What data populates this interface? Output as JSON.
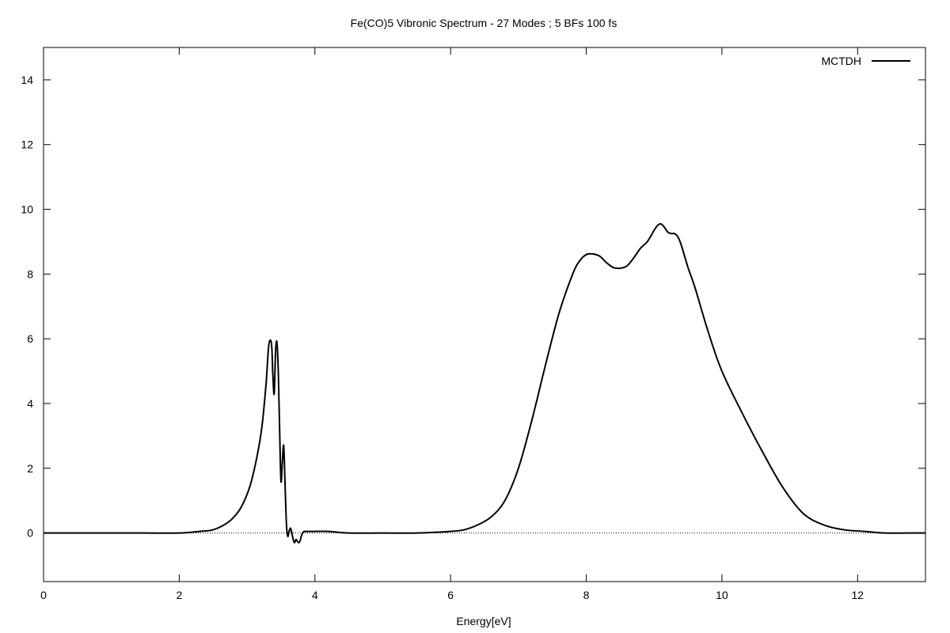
{
  "chart_data": {
    "type": "line",
    "title": "Fe(CO)5 Vibronic Spectrum - 27 Modes ; 5 BFs 100 fs",
    "xlabel": "Energy[eV]",
    "ylabel": "",
    "xlim": [
      0,
      13
    ],
    "ylim": [
      -1.5,
      15
    ],
    "xticks": [
      0,
      2,
      4,
      6,
      8,
      10,
      12
    ],
    "yticks": [
      0,
      2,
      4,
      6,
      8,
      10,
      12,
      14
    ],
    "xtick_labels": [
      "0",
      "2",
      "4",
      "6",
      "8",
      "10",
      "12"
    ],
    "ytick_labels": [
      "0",
      "2",
      "4",
      "6",
      "8",
      "10",
      "12",
      "14"
    ],
    "grid": false,
    "zero_line": true,
    "legend_position": "top-right",
    "series": [
      {
        "name": "MCTDH",
        "color": "#000000",
        "x": [
          0.0,
          0.5,
          1.0,
          1.5,
          2.0,
          2.3,
          2.5,
          2.7,
          2.85,
          2.95,
          3.05,
          3.15,
          3.22,
          3.28,
          3.32,
          3.36,
          3.38,
          3.4,
          3.42,
          3.44,
          3.46,
          3.48,
          3.5,
          3.52,
          3.54,
          3.56,
          3.58,
          3.6,
          3.62,
          3.64,
          3.66,
          3.68,
          3.7,
          3.72,
          3.74,
          3.76,
          3.78,
          3.8,
          3.82,
          3.84,
          3.86,
          3.88,
          3.9,
          3.95,
          4.0,
          4.2,
          4.5,
          5.0,
          5.5,
          6.0,
          6.2,
          6.4,
          6.6,
          6.8,
          7.0,
          7.2,
          7.4,
          7.6,
          7.8,
          7.9,
          8.0,
          8.1,
          8.2,
          8.3,
          8.4,
          8.5,
          8.6,
          8.7,
          8.8,
          8.9,
          9.0,
          9.05,
          9.1,
          9.15,
          9.2,
          9.25,
          9.3,
          9.35,
          9.4,
          9.5,
          9.6,
          9.8,
          10.0,
          10.3,
          10.6,
          10.9,
          11.2,
          11.5,
          11.8,
          12.1,
          12.4,
          12.7,
          13.0
        ],
        "y": [
          0.0,
          0.0,
          0.0,
          0.0,
          0.0,
          0.05,
          0.1,
          0.3,
          0.6,
          0.95,
          1.5,
          2.4,
          3.3,
          4.6,
          5.8,
          5.85,
          4.9,
          4.3,
          5.6,
          5.9,
          5.0,
          3.2,
          1.6,
          2.2,
          2.7,
          1.5,
          0.3,
          -0.1,
          0.05,
          0.15,
          0.0,
          -0.2,
          -0.3,
          -0.2,
          -0.25,
          -0.3,
          -0.25,
          -0.1,
          0.0,
          0.05,
          0.05,
          0.05,
          0.05,
          0.05,
          0.05,
          0.05,
          0.0,
          0.0,
          0.0,
          0.05,
          0.1,
          0.25,
          0.5,
          1.0,
          2.0,
          3.5,
          5.2,
          6.8,
          8.0,
          8.4,
          8.6,
          8.62,
          8.55,
          8.35,
          8.2,
          8.18,
          8.25,
          8.5,
          8.8,
          9.0,
          9.35,
          9.5,
          9.55,
          9.45,
          9.3,
          9.25,
          9.25,
          9.15,
          8.9,
          8.2,
          7.6,
          6.2,
          5.0,
          3.7,
          2.5,
          1.4,
          0.6,
          0.25,
          0.1,
          0.05,
          0.0,
          0.0,
          0.0
        ]
      }
    ]
  }
}
